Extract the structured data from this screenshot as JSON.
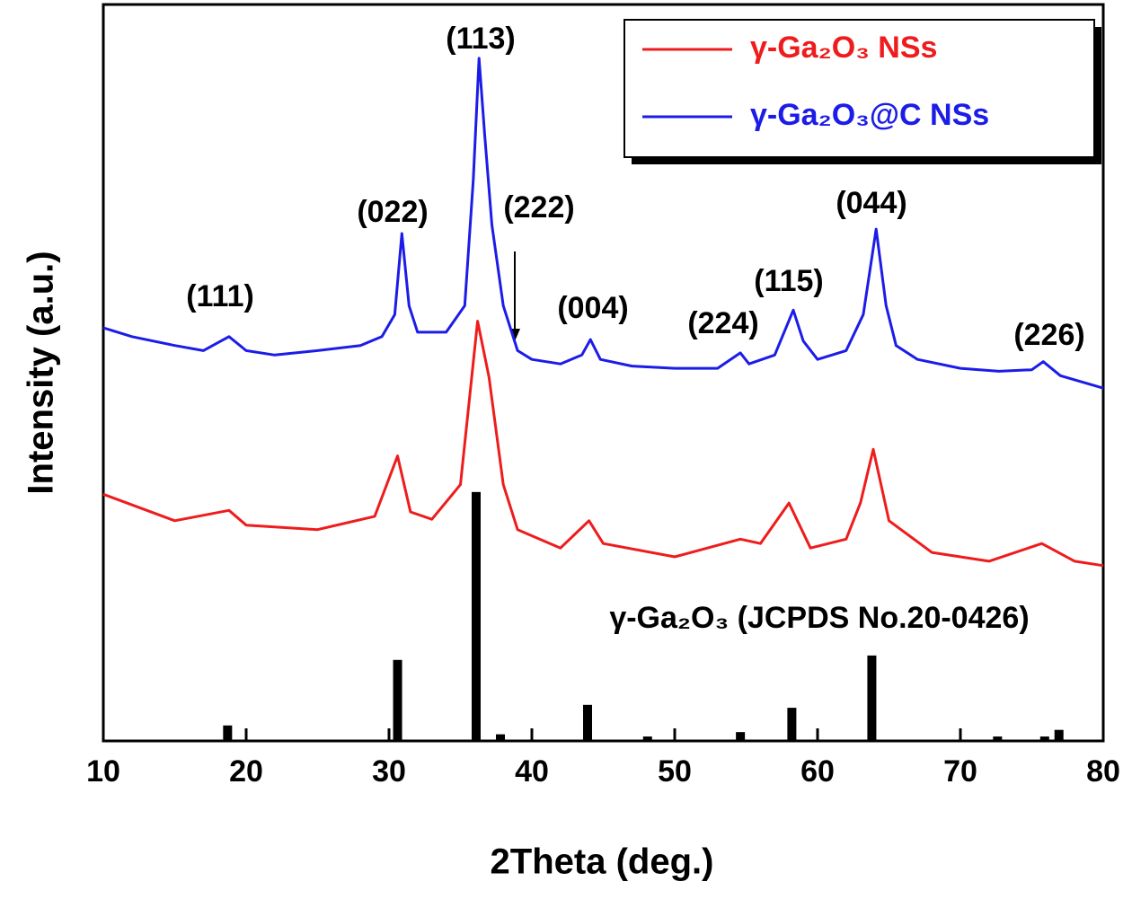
{
  "chart_data": {
    "type": "line",
    "x_label": "2Theta (deg.)",
    "y_label": "Intensity (a.u.)",
    "xlim": [
      10,
      80
    ],
    "xticks": [
      10,
      20,
      30,
      40,
      50,
      60,
      70,
      80
    ],
    "ylim": [
      0,
      100
    ],
    "series": [
      {
        "name": "γ-Ga₂O₃ NSs",
        "color": "#ee1c1c",
        "x": [
          10,
          15,
          18.8,
          20,
          25,
          29,
          30.6,
          31.5,
          33,
          35,
          36.2,
          37,
          38,
          39,
          42,
          44,
          45,
          50,
          54.6,
          56,
          58,
          59.5,
          62,
          63,
          63.9,
          65,
          68,
          72,
          75.7,
          78,
          80
        ],
        "values": [
          33.5,
          29.9,
          31.3,
          29.3,
          28.7,
          30.5,
          38.7,
          31.1,
          30.1,
          34.8,
          57.0,
          49.4,
          34.8,
          28.7,
          26.2,
          29.9,
          26.8,
          25.0,
          27.4,
          26.8,
          32.3,
          26.2,
          27.4,
          32.3,
          39.6,
          29.9,
          25.6,
          24.4,
          26.8,
          24.4,
          23.8
        ]
      },
      {
        "name": "γ-Ga₂O₃@C NSs",
        "color": "#1c1ce8",
        "x": [
          10,
          12,
          15,
          17,
          18.8,
          20,
          22,
          25,
          28,
          29.5,
          30.4,
          30.9,
          31.4,
          32,
          34,
          35.3,
          35.9,
          36.3,
          36.7,
          37.2,
          38,
          39,
          40,
          42,
          43.5,
          44.1,
          44.8,
          47,
          50,
          53,
          54.6,
          55.2,
          57,
          58.3,
          59,
          60,
          62,
          63.2,
          64.1,
          64.8,
          65.5,
          67,
          70,
          72.7,
          75,
          75.8,
          77,
          80
        ],
        "values": [
          56.1,
          54.9,
          53.7,
          53.0,
          54.9,
          53.0,
          52.4,
          53.0,
          53.7,
          54.9,
          57.9,
          68.9,
          59.1,
          55.5,
          55.5,
          59.1,
          76.2,
          92.7,
          82.3,
          70.1,
          59.1,
          53.0,
          51.8,
          51.2,
          52.4,
          54.5,
          51.8,
          50.9,
          50.6,
          50.6,
          52.7,
          51.2,
          52.4,
          58.5,
          54.3,
          51.8,
          53.0,
          57.9,
          69.5,
          59.1,
          53.7,
          51.8,
          50.6,
          50.2,
          50.4,
          51.5,
          49.6,
          47.9
        ]
      }
    ],
    "reference": {
      "name": "γ-Ga₂O₃ (JCPDS No.20-0426)",
      "color": "#000000",
      "x": [
        18.7,
        30.6,
        36.1,
        37.8,
        43.9,
        48.1,
        54.6,
        58.2,
        63.8,
        72.6,
        75.9,
        76.9
      ],
      "values": [
        2.1,
        11.0,
        33.8,
        0.9,
        4.9,
        0.6,
        1.2,
        4.5,
        11.6,
        0.6,
        0.6,
        1.5
      ]
    },
    "annotations": [
      "(111)",
      "(022)",
      "(113)",
      "(222)",
      "(004)",
      "(224)",
      "(115)",
      "(044)",
      "(226)"
    ]
  }
}
